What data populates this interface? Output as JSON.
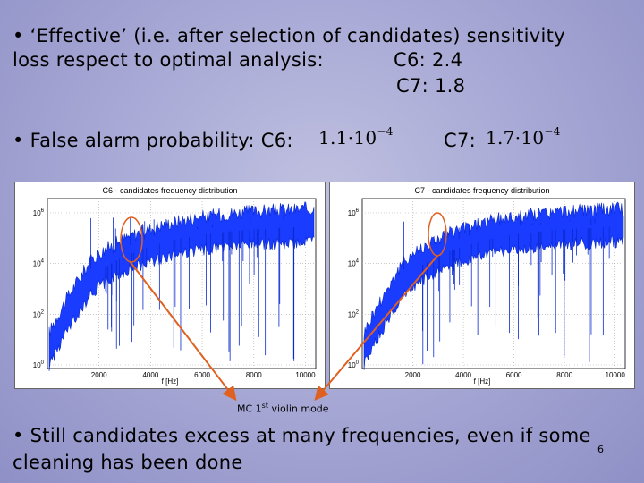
{
  "slide": {
    "bullet1_line1": "• ‘Effective’ (i.e. after selection of candidates) sensitivity",
    "bullet1_line2": "loss respect to optimal analysis:",
    "c6_loss": "C6: 2.4",
    "c7_loss": "C7: 1.8",
    "bullet2_label": "• False alarm probability:   C6:",
    "c6_prob_mantissa": "1.1·10",
    "c6_prob_exp": "−4",
    "c7_label": "C7:",
    "c7_prob_mantissa": "1.7·10",
    "c7_prob_exp": "−4",
    "annotation": "MC 1st violin mode",
    "annotation_base": "MC 1",
    "annotation_sup": "st",
    "annotation_rest": " violin mode",
    "bullet3_line1": "• Still candidates excess at many frequencies, even if some",
    "bullet3_line2": "cleaning has been done",
    "slide_number": "6",
    "background_color": "#a9aad6",
    "arrow_color": "#e06020"
  },
  "plots": [
    {
      "title": "C6 - candidates frequency distribution",
      "xlabel": "f [Hz]",
      "xticks": [
        "2000",
        "4000",
        "6000",
        "8000",
        "10000"
      ],
      "yticks": [
        "10",
        "10",
        "10",
        "10"
      ],
      "yexps": [
        "6",
        "4",
        "2",
        "0"
      ]
    },
    {
      "title": "C7 - candidates frequency distribution",
      "xlabel": "f [Hz]",
      "xticks": [
        "2000",
        "4000",
        "6000",
        "8000",
        "10000"
      ],
      "yticks": [
        "10",
        "10",
        "10",
        "10"
      ],
      "yexps": [
        "6",
        "4",
        "2",
        "0"
      ]
    }
  ]
}
